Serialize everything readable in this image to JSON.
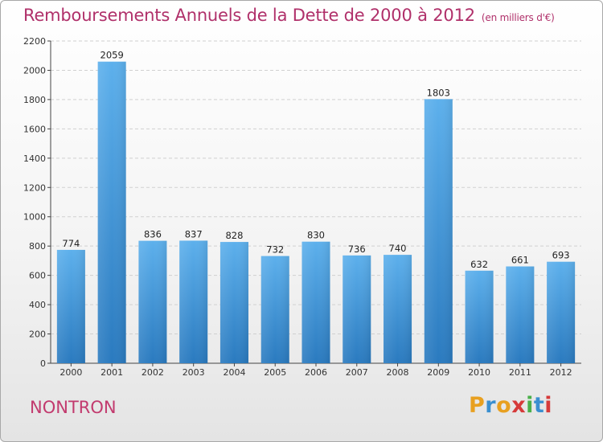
{
  "chart_data": {
    "type": "bar",
    "title": "Remboursements Annuels de la Dette de 2000 à 2012",
    "unit": "(en milliers d'€)",
    "categories": [
      "2000",
      "2001",
      "2002",
      "2003",
      "2004",
      "2005",
      "2006",
      "2007",
      "2008",
      "2009",
      "2010",
      "2011",
      "2012"
    ],
    "values": [
      774,
      2059,
      836,
      837,
      828,
      732,
      830,
      736,
      740,
      1803,
      632,
      661,
      693
    ],
    "ylim": [
      0,
      2200
    ],
    "yticks": [
      0,
      200,
      400,
      600,
      800,
      1000,
      1200,
      1400,
      1600,
      1800,
      2000,
      2200
    ],
    "grid": true,
    "bar_color": "#4a9de0"
  },
  "commune": "NONTRON",
  "logo": {
    "text": "Proxiti",
    "colors": [
      "#e8a020",
      "#3a8fd0",
      "#e8a020",
      "#d63a3a",
      "#4ab04a",
      "#3a8fd0",
      "#d63a3a"
    ]
  }
}
